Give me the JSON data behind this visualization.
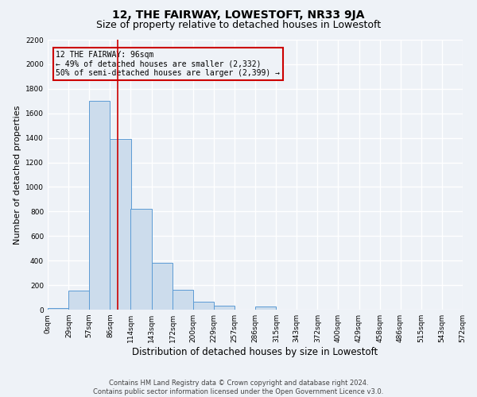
{
  "title": "12, THE FAIRWAY, LOWESTOFT, NR33 9JA",
  "subtitle": "Size of property relative to detached houses in Lowestoft",
  "xlabel": "Distribution of detached houses by size in Lowestoft",
  "ylabel": "Number of detached properties",
  "bar_left_edges": [
    0,
    29,
    57,
    86,
    114,
    143,
    172,
    200,
    229,
    257,
    286,
    315,
    343,
    372,
    400,
    429,
    458,
    486,
    515,
    543
  ],
  "bar_heights": [
    15,
    155,
    1700,
    1390,
    820,
    380,
    160,
    65,
    30,
    0,
    25,
    0,
    0,
    0,
    0,
    0,
    0,
    0,
    0,
    0
  ],
  "bar_color": "#ccdcec",
  "bar_edge_color": "#5b9bd5",
  "property_line_x": 96,
  "property_line_color": "#cc0000",
  "annotation_box_color": "#cc0000",
  "annotation_text": "12 THE FAIRWAY: 96sqm\n← 49% of detached houses are smaller (2,332)\n50% of semi-detached houses are larger (2,399) →",
  "tick_labels": [
    "0sqm",
    "29sqm",
    "57sqm",
    "86sqm",
    "114sqm",
    "143sqm",
    "172sqm",
    "200sqm",
    "229sqm",
    "257sqm",
    "286sqm",
    "315sqm",
    "343sqm",
    "372sqm",
    "400sqm",
    "429sqm",
    "458sqm",
    "486sqm",
    "515sqm",
    "543sqm",
    "572sqm"
  ],
  "ylim": [
    0,
    2200
  ],
  "yticks": [
    0,
    200,
    400,
    600,
    800,
    1000,
    1200,
    1400,
    1600,
    1800,
    2000,
    2200
  ],
  "footer_line1": "Contains HM Land Registry data © Crown copyright and database right 2024.",
  "footer_line2": "Contains public sector information licensed under the Open Government Licence v3.0.",
  "bg_color": "#eef2f7",
  "grid_color": "#ffffff",
  "title_fontsize": 10,
  "subtitle_fontsize": 9,
  "xlabel_fontsize": 8.5,
  "ylabel_fontsize": 8,
  "tick_fontsize": 6.5,
  "annotation_fontsize": 7,
  "footer_fontsize": 6
}
